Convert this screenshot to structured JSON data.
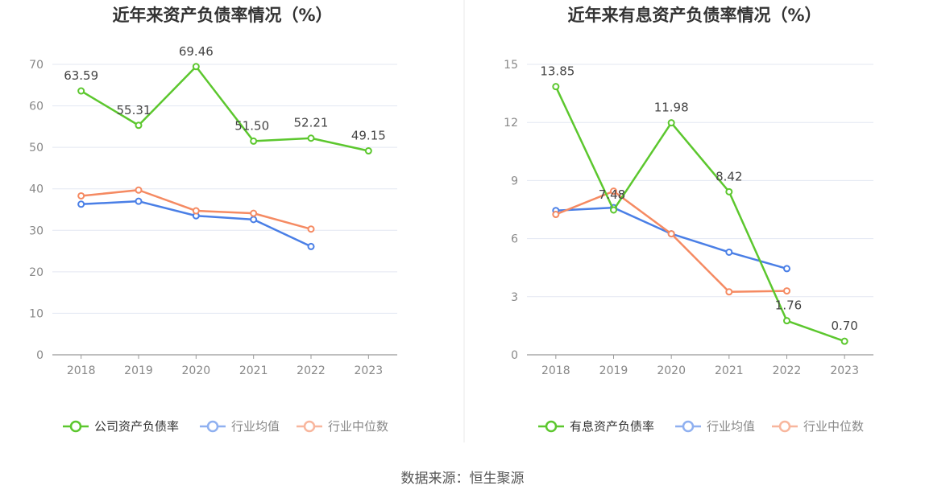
{
  "source": "数据来源：恒生聚源",
  "chart_data": [
    {
      "type": "line",
      "title": "近年来资产负债率情况（%）",
      "categories": [
        "2018",
        "2019",
        "2020",
        "2021",
        "2022",
        "2023"
      ],
      "ylim": [
        0,
        70
      ],
      "yticks": [
        0,
        10,
        20,
        30,
        40,
        50,
        60,
        70
      ],
      "grid": true,
      "legend_position": "bottom",
      "series": [
        {
          "name": "公司资产负债率",
          "color": "#5cc72e",
          "values": [
            63.59,
            55.31,
            69.46,
            51.5,
            52.21,
            49.15
          ],
          "labels": true
        },
        {
          "name": "行业均值",
          "color": "#4a7fe6",
          "values": [
            36.3,
            37.0,
            33.5,
            32.6,
            26.1,
            null
          ]
        },
        {
          "name": "行业中位数",
          "color": "#f58a62",
          "values": [
            38.3,
            39.7,
            34.7,
            34.1,
            30.3,
            null
          ]
        }
      ]
    },
    {
      "type": "line",
      "title": "近年来有息资产负债率情况（%）",
      "categories": [
        "2018",
        "2019",
        "2020",
        "2021",
        "2022",
        "2023"
      ],
      "ylim": [
        0,
        15
      ],
      "yticks": [
        0,
        3,
        6,
        9,
        12,
        15
      ],
      "grid": true,
      "legend_position": "bottom",
      "series": [
        {
          "name": "有息资产负债率",
          "color": "#5cc72e",
          "values": [
            13.85,
            7.48,
            11.98,
            8.42,
            1.76,
            0.7
          ],
          "labels": true
        },
        {
          "name": "行业均值",
          "color": "#4a7fe6",
          "values": [
            7.45,
            7.6,
            6.25,
            5.3,
            4.45,
            null
          ]
        },
        {
          "name": "行业中位数",
          "color": "#f58a62",
          "values": [
            7.25,
            8.45,
            6.25,
            3.25,
            3.3,
            null
          ]
        }
      ]
    }
  ]
}
